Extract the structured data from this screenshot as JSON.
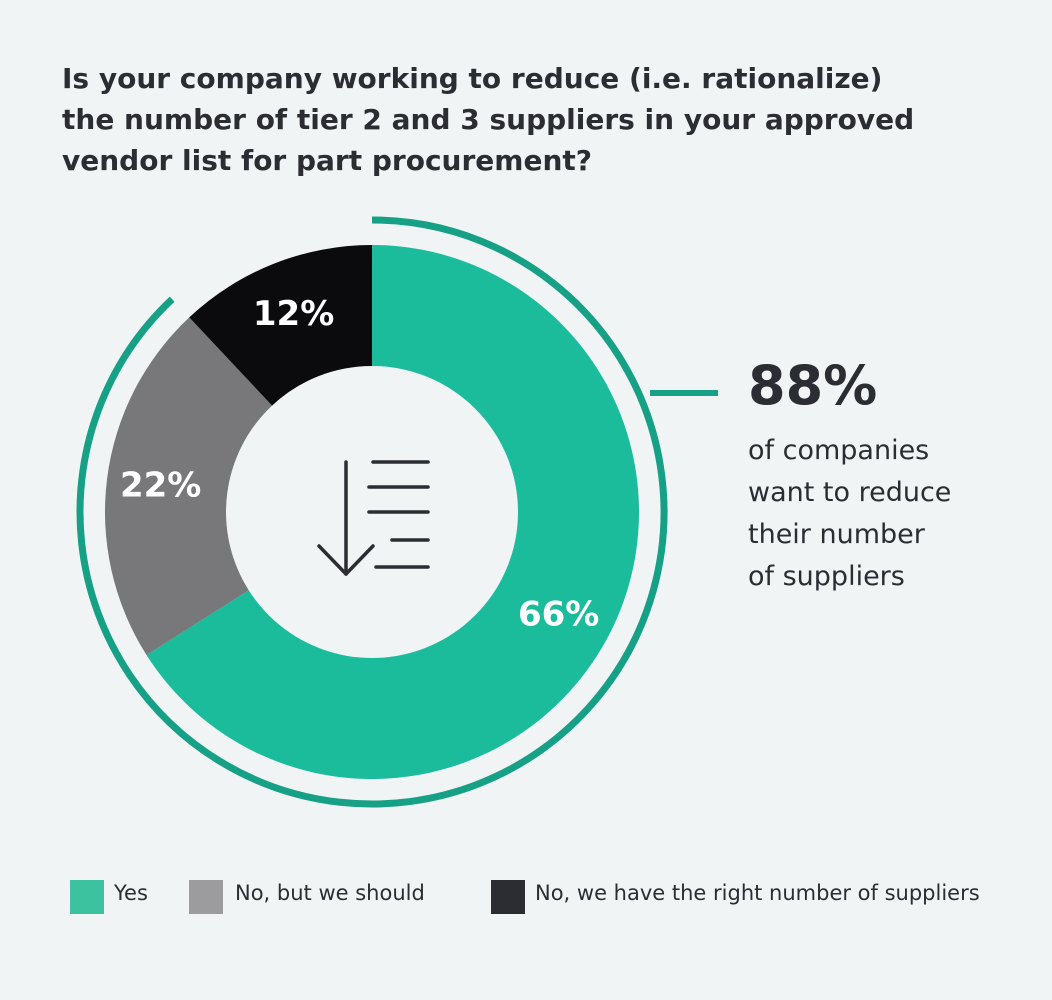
{
  "title_lines": [
    "Is your company working to reduce (i.e. rationalize)",
    "the number of tier 2 and 3 suppliers in your approved",
    "vendor list for part procurement?"
  ],
  "callout": {
    "value": "88%",
    "lines": [
      "of companies",
      "want to reduce",
      "their number",
      "of suppliers"
    ]
  },
  "chart_data": {
    "type": "pie",
    "donut": true,
    "categories": [
      "Yes",
      "No, but we should",
      "No, we have the right number of suppliers"
    ],
    "values": [
      66,
      22,
      12
    ],
    "value_labels": [
      "66%",
      "22%",
      "12%"
    ],
    "colors": [
      "#1abc9c",
      "#78787b",
      "#0b0b0d"
    ],
    "legend_colors": [
      "#3cc29f",
      "#9c9c9f",
      "#2b2d33"
    ],
    "highlight_arc_color": "#16a085",
    "legend_position": "bottom",
    "center_icon": "sort-descending-icon",
    "label_color": "#ffffff"
  }
}
